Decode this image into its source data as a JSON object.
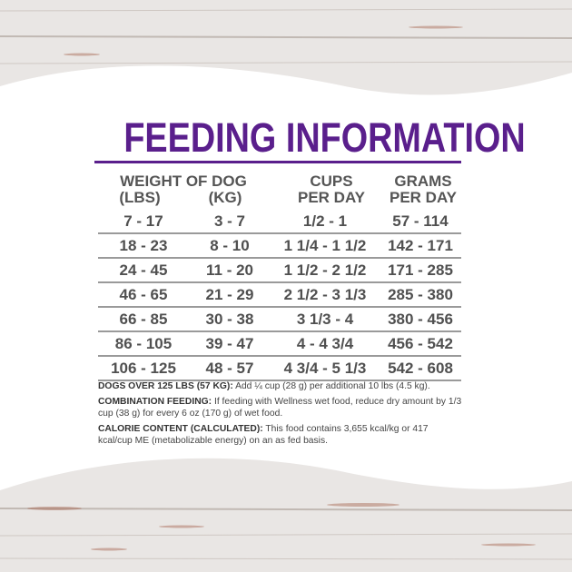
{
  "title": "FEEDING INFORMATION",
  "colors": {
    "accent": "#5a1f8c",
    "text": "#505050",
    "rule": "#9a9a9a"
  },
  "table": {
    "headers": {
      "weight": "WEIGHT OF DOG",
      "lbs": "(LBS)",
      "kg": "(KG)",
      "cups_1": "CUPS",
      "cups_2": "PER DAY",
      "grams_1": "GRAMS",
      "grams_2": "PER DAY"
    },
    "rows": [
      [
        "7 - 17",
        "3 - 7",
        "1/2 - 1",
        "57 - 114"
      ],
      [
        "18 - 23",
        "8 - 10",
        "1 1/4 - 1 1/2",
        "142 - 171"
      ],
      [
        "24 - 45",
        "11 - 20",
        "1 1/2 - 2 1/2",
        "171 - 285"
      ],
      [
        "46 - 65",
        "21 - 29",
        "2 1/2 - 3 1/3",
        "285 - 380"
      ],
      [
        "66 - 85",
        "30 - 38",
        "3 1/3 - 4",
        "380 - 456"
      ],
      [
        "86 - 105",
        "39 - 47",
        "4 - 4 3/4",
        "456 - 542"
      ],
      [
        "106 - 125",
        "48 - 57",
        "4 3/4 - 5 1/3",
        "542 - 608"
      ]
    ]
  },
  "notes": [
    {
      "label": "DOGS OVER 125 LBS (57 KG):",
      "text": " Add ¼ cup (28 g) per additional 10 lbs (4.5 kg)."
    },
    {
      "label": "COMBINATION FEEDING:",
      "text": " If feeding with Wellness wet food, reduce dry amount by 1/3 cup (38 g) for every 6 oz (170 g) of wet food."
    },
    {
      "label": "CALORIE CONTENT (CALCULATED):",
      "text": " This food contains 3,655 kcal/kg or 417 kcal/cup ME (metabolizable energy) on an as fed basis."
    }
  ]
}
